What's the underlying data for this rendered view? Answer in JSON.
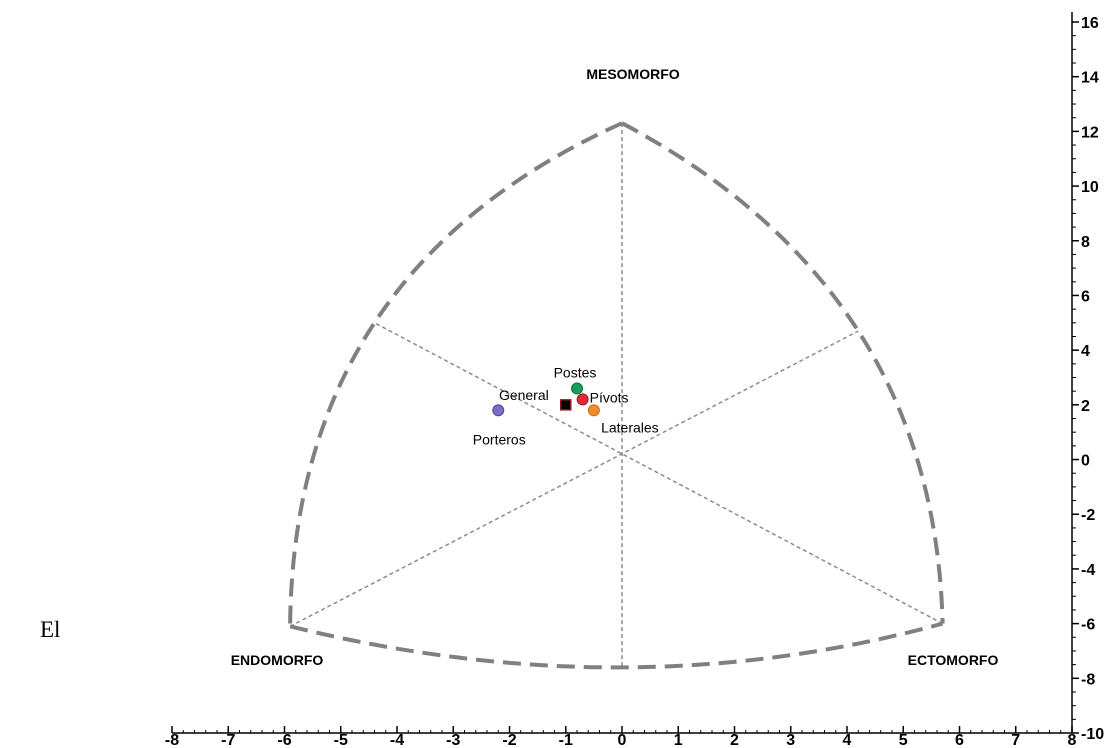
{
  "side_text": "El",
  "chart_data": {
    "type": "scatter",
    "title": "",
    "xlim": [
      -8,
      8
    ],
    "ylim": [
      -10,
      16
    ],
    "x_ticks": [
      -8,
      -7,
      -6,
      -5,
      -4,
      -3,
      -2,
      -1,
      0,
      1,
      2,
      3,
      4,
      5,
      6,
      7,
      8
    ],
    "y_ticks": [
      -10,
      -8,
      -6,
      -4,
      -2,
      0,
      2,
      4,
      6,
      8,
      10,
      12,
      14,
      16
    ],
    "grid": false,
    "corner_labels": {
      "top": "MESOMORFO",
      "left": "ENDOMORFO",
      "right": "ECTOMORFO"
    },
    "somatochart": {
      "top_vertex": [
        0,
        12.3
      ],
      "left_vertex": [
        -5.9,
        -6.1
      ],
      "right_vertex": [
        5.7,
        -6.0
      ],
      "center": [
        0,
        0.3
      ],
      "upper_left_mid": [
        -4.4,
        5.0
      ],
      "upper_right_mid": [
        4.2,
        4.7
      ],
      "bottom_mid": [
        0,
        -7.6
      ]
    },
    "series": [
      {
        "name": "General",
        "x": -1.0,
        "y": 2.0,
        "marker": "square",
        "color": "#000000",
        "fill": "#000000",
        "edge": "#8b1a1a"
      },
      {
        "name": "Postes",
        "x": -0.8,
        "y": 2.6,
        "marker": "circle",
        "color": "#1a9c5b",
        "fill": "#1a9c5b",
        "edge": "#0f6e3f"
      },
      {
        "name": "Pívots",
        "x": -0.7,
        "y": 2.2,
        "marker": "circle",
        "color": "#e02b3a",
        "fill": "#e02b3a",
        "edge": "#a8101e"
      },
      {
        "name": "Laterales",
        "x": -0.5,
        "y": 1.8,
        "marker": "circle",
        "color": "#f28c28",
        "fill": "#f28c28",
        "edge": "#c96a10"
      },
      {
        "name": "Porteros",
        "x": -2.2,
        "y": 1.8,
        "marker": "circle",
        "color": "#7b6cc4",
        "fill": "#7b6cc4",
        "edge": "#4f4290"
      }
    ]
  }
}
